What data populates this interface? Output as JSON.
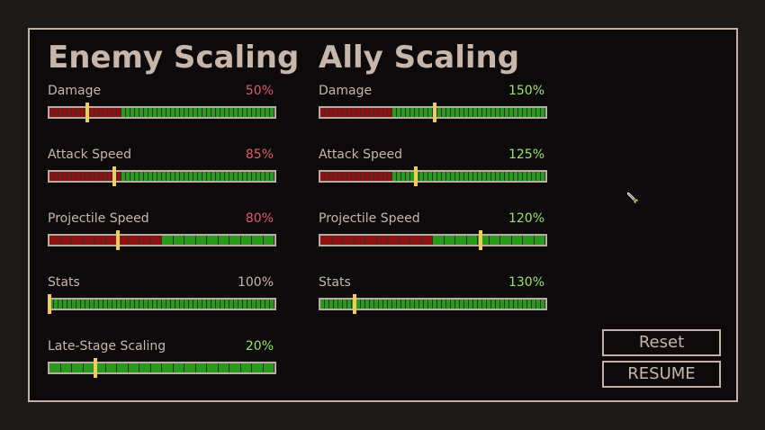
{
  "enemy": {
    "title": "Enemy Scaling",
    "rows": [
      {
        "label": "Damage",
        "value": "50%",
        "color": "#e05c66",
        "level": 0.165,
        "red_end": 0.33,
        "seg_count": 50
      },
      {
        "label": "Attack Speed",
        "value": "85%",
        "color": "#e05c66",
        "level": 0.283,
        "red_end": 0.33,
        "seg_count": 50
      },
      {
        "label": "Projectile Speed",
        "value": "80%",
        "color": "#e05c66",
        "level": 0.3,
        "red_end": 0.5,
        "seg_count": 20
      },
      {
        "label": "Stats",
        "value": "100%",
        "color": "#c8b6aa",
        "level": 0.0,
        "red_end": 0.0,
        "seg_count": 50
      },
      {
        "label": "Late-Stage Scaling",
        "value": "20%",
        "color": "#9be46b",
        "level": 0.2,
        "red_end": 0.0,
        "seg_count": 20
      }
    ]
  },
  "ally": {
    "title": "Ally Scaling",
    "rows": [
      {
        "label": "Damage",
        "value": "150%",
        "color": "#9be46b",
        "level": 0.5,
        "red_end": 0.33,
        "seg_count": 50
      },
      {
        "label": "Attack Speed",
        "value": "125%",
        "color": "#9be46b",
        "level": 0.417,
        "red_end": 0.33,
        "seg_count": 50
      },
      {
        "label": "Projectile Speed",
        "value": "120%",
        "color": "#9be46b",
        "level": 0.7,
        "red_end": 0.5,
        "seg_count": 20
      },
      {
        "label": "Stats",
        "value": "130%",
        "color": "#9be46b",
        "level": 0.15,
        "red_end": 0.0,
        "seg_count": 50
      }
    ]
  },
  "buttons": {
    "reset": "Reset",
    "resume": "RESUME"
  },
  "colors": {
    "red": "#8e1112",
    "green": "#2a9a1e",
    "marker": "#f0cc5a"
  },
  "icons": {
    "cursor": "sword-cursor-icon"
  }
}
